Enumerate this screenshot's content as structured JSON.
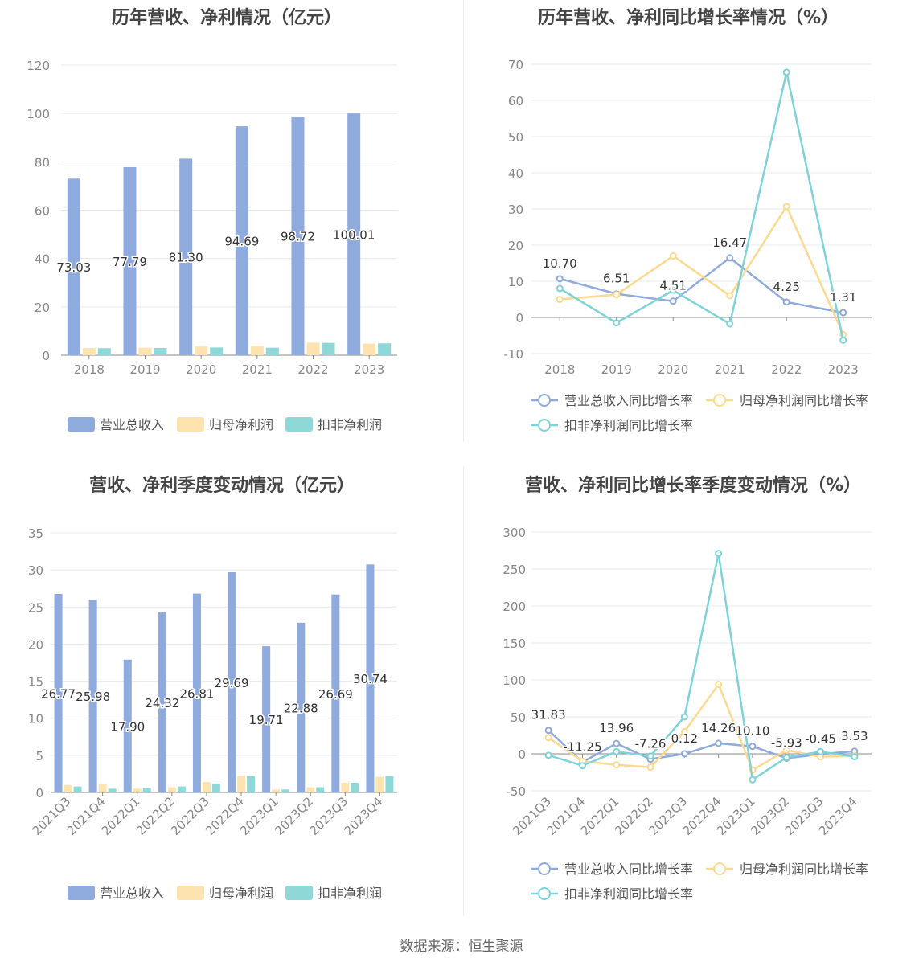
{
  "source_text": "数据来源：恒生聚源",
  "chart_data": [
    {
      "type": "bar",
      "title": "历年营收、净利情况（亿元）",
      "categories": [
        "2018",
        "2019",
        "2020",
        "2021",
        "2022",
        "2023"
      ],
      "ylim": [
        0,
        120
      ],
      "yticks": [
        0,
        20,
        40,
        60,
        80,
        100,
        120
      ],
      "grid": true,
      "legend_position": "bottom",
      "series": [
        {
          "name": "营业总收入",
          "color": "#8faadc",
          "values": [
            73.03,
            77.79,
            81.3,
            94.69,
            98.72,
            100.01
          ],
          "labels": [
            "73.03",
            "77.79",
            "81.30",
            "94.69",
            "98.72",
            "100.01"
          ]
        },
        {
          "name": "归母净利润",
          "color": "#fde3b0",
          "values": [
            3.0,
            3.1,
            3.6,
            3.9,
            5.2,
            4.8
          ]
        },
        {
          "name": "扣非净利润",
          "color": "#8fd8d8",
          "values": [
            2.9,
            3.0,
            3.2,
            3.1,
            5.1,
            4.9
          ]
        }
      ]
    },
    {
      "type": "line",
      "title": "历年营收、净利同比增长率情况（%）",
      "categories": [
        "2018",
        "2019",
        "2020",
        "2021",
        "2022",
        "2023"
      ],
      "ylim": [
        -10,
        70
      ],
      "yticks": [
        -10,
        0,
        10,
        20,
        30,
        40,
        50,
        60,
        70
      ],
      "grid": true,
      "legend_position": "bottom",
      "series": [
        {
          "name": "营业总收入同比增长率",
          "color": "#8faadc",
          "values": [
            10.7,
            6.51,
            4.51,
            16.47,
            4.25,
            1.31
          ],
          "labels": [
            "10.70",
            "6.51",
            "4.51",
            "16.47",
            "4.25",
            "1.31"
          ]
        },
        {
          "name": "归母净利润同比增长率",
          "color": "#fdd98f",
          "values": [
            5.0,
            6.3,
            17.0,
            6.0,
            30.7,
            -4.7
          ]
        },
        {
          "name": "扣非净利润同比增长率",
          "color": "#7dd3d8",
          "values": [
            8.0,
            -1.5,
            7.5,
            -1.8,
            67.8,
            -6.3
          ]
        }
      ]
    },
    {
      "type": "bar",
      "title": "营收、净利季度变动情况（亿元）",
      "categories": [
        "2021Q3",
        "2021Q4",
        "2022Q1",
        "2022Q2",
        "2022Q3",
        "2022Q4",
        "2023Q1",
        "2023Q2",
        "2023Q3",
        "2023Q4"
      ],
      "ylim": [
        0,
        35
      ],
      "yticks": [
        0,
        5,
        10,
        15,
        20,
        25,
        30,
        35
      ],
      "grid": true,
      "legend_position": "bottom",
      "series": [
        {
          "name": "营业总收入",
          "color": "#8faadc",
          "values": [
            26.77,
            25.98,
            17.9,
            24.32,
            26.81,
            29.69,
            19.71,
            22.88,
            26.69,
            30.74
          ],
          "labels": [
            "26.77",
            "25.98",
            "17.90",
            "24.32",
            "26.81",
            "29.69",
            "19.71",
            "22.88",
            "26.69",
            "30.74"
          ]
        },
        {
          "name": "归母净利润",
          "color": "#fde3b0",
          "values": [
            1.0,
            1.1,
            0.5,
            0.7,
            1.4,
            2.2,
            0.4,
            0.7,
            1.3,
            2.1
          ]
        },
        {
          "name": "扣非净利润",
          "color": "#8fd8d8",
          "values": [
            0.8,
            0.5,
            0.6,
            0.8,
            1.2,
            2.2,
            0.4,
            0.7,
            1.3,
            2.2
          ]
        }
      ]
    },
    {
      "type": "line",
      "title": "营收、净利同比增长率季度变动情况（%）",
      "categories": [
        "2021Q3",
        "2021Q4",
        "2022Q1",
        "2022Q2",
        "2022Q3",
        "2022Q4",
        "2023Q1",
        "2023Q2",
        "2023Q3",
        "2023Q4"
      ],
      "ylim": [
        -50,
        300
      ],
      "yticks": [
        -50,
        0,
        50,
        100,
        150,
        200,
        250,
        300
      ],
      "grid": true,
      "legend_position": "bottom",
      "series": [
        {
          "name": "营业总收入同比增长率",
          "color": "#8faadc",
          "values": [
            31.83,
            -11.25,
            13.96,
            -7.26,
            0.12,
            14.26,
            10.1,
            -5.93,
            -0.45,
            3.53
          ],
          "labels": [
            "31.83",
            "-11.25",
            "13.96",
            "-7.26",
            "0.12",
            "14.26",
            "10.10",
            "-5.93",
            "-0.45",
            "3.53"
          ]
        },
        {
          "name": "归母净利润同比增长率",
          "color": "#fdd98f",
          "values": [
            22,
            -10,
            -15,
            -18,
            30,
            94,
            -22,
            5,
            -4,
            -3
          ]
        },
        {
          "name": "扣非净利润同比增长率",
          "color": "#7dd3d8",
          "values": [
            -2,
            -16,
            3,
            -3,
            50,
            271,
            -35,
            -5,
            3,
            -4
          ]
        }
      ]
    }
  ]
}
